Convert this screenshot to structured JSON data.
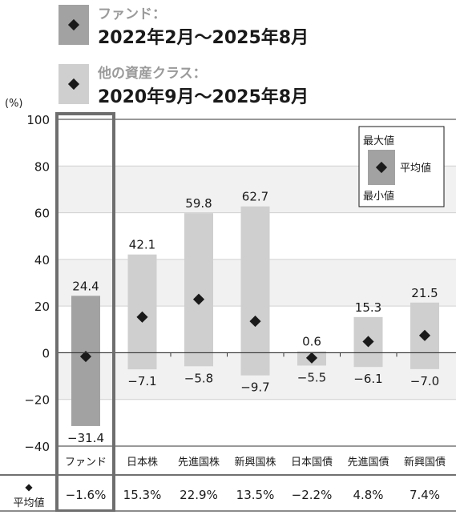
{
  "colors": {
    "fund": "#a2a2a2",
    "other": "#cfcfcf",
    "diamond": "#1a1a1a",
    "frame": "#6e6e6e",
    "band": "#f1f1f1",
    "axis": "#333333"
  },
  "header": {
    "fund_label": "ファンド：",
    "fund_period": "2022年2月〜2025年8月",
    "other_label": "他の資産クラス：",
    "other_period": "2020年9月〜2025年8月"
  },
  "legend": {
    "max_label": "最大値",
    "avg_label": "平均値",
    "min_label": "最小値"
  },
  "avg_row": {
    "marker": "◆",
    "label": "平均値",
    "values": [
      "−1.6%",
      "15.3%",
      "22.9%",
      "13.5%",
      "−2.2%",
      "4.8%",
      "7.4%"
    ]
  },
  "chart_data": {
    "type": "range_bar",
    "yunit": "(%)",
    "ylim": [
      -40,
      100
    ],
    "yticks": [
      100,
      80,
      60,
      40,
      20,
      0,
      -20,
      -40
    ],
    "yticklabels": [
      "100",
      "80",
      "60",
      "40",
      "20",
      "0",
      "−20",
      "−40"
    ],
    "categories": [
      "ファンド",
      "日本株",
      "先進国株",
      "新興国株",
      "日本国債",
      "先進国債",
      "新興国債"
    ],
    "max": [
      24.4,
      42.1,
      59.8,
      62.7,
      0.6,
      15.3,
      21.5
    ],
    "min": [
      -31.4,
      -7.1,
      -5.8,
      -9.7,
      -5.5,
      -6.1,
      -7.0
    ],
    "avg": [
      -1.6,
      15.3,
      22.9,
      13.5,
      -2.2,
      4.8,
      7.4
    ],
    "max_labels": [
      "24.4",
      "42.1",
      "59.8",
      "62.7",
      "0.6",
      "15.3",
      "21.5"
    ],
    "min_labels": [
      "−31.4",
      "−7.1",
      "−5.8",
      "−9.7",
      "−5.5",
      "−6.1",
      "−7.0"
    ]
  }
}
